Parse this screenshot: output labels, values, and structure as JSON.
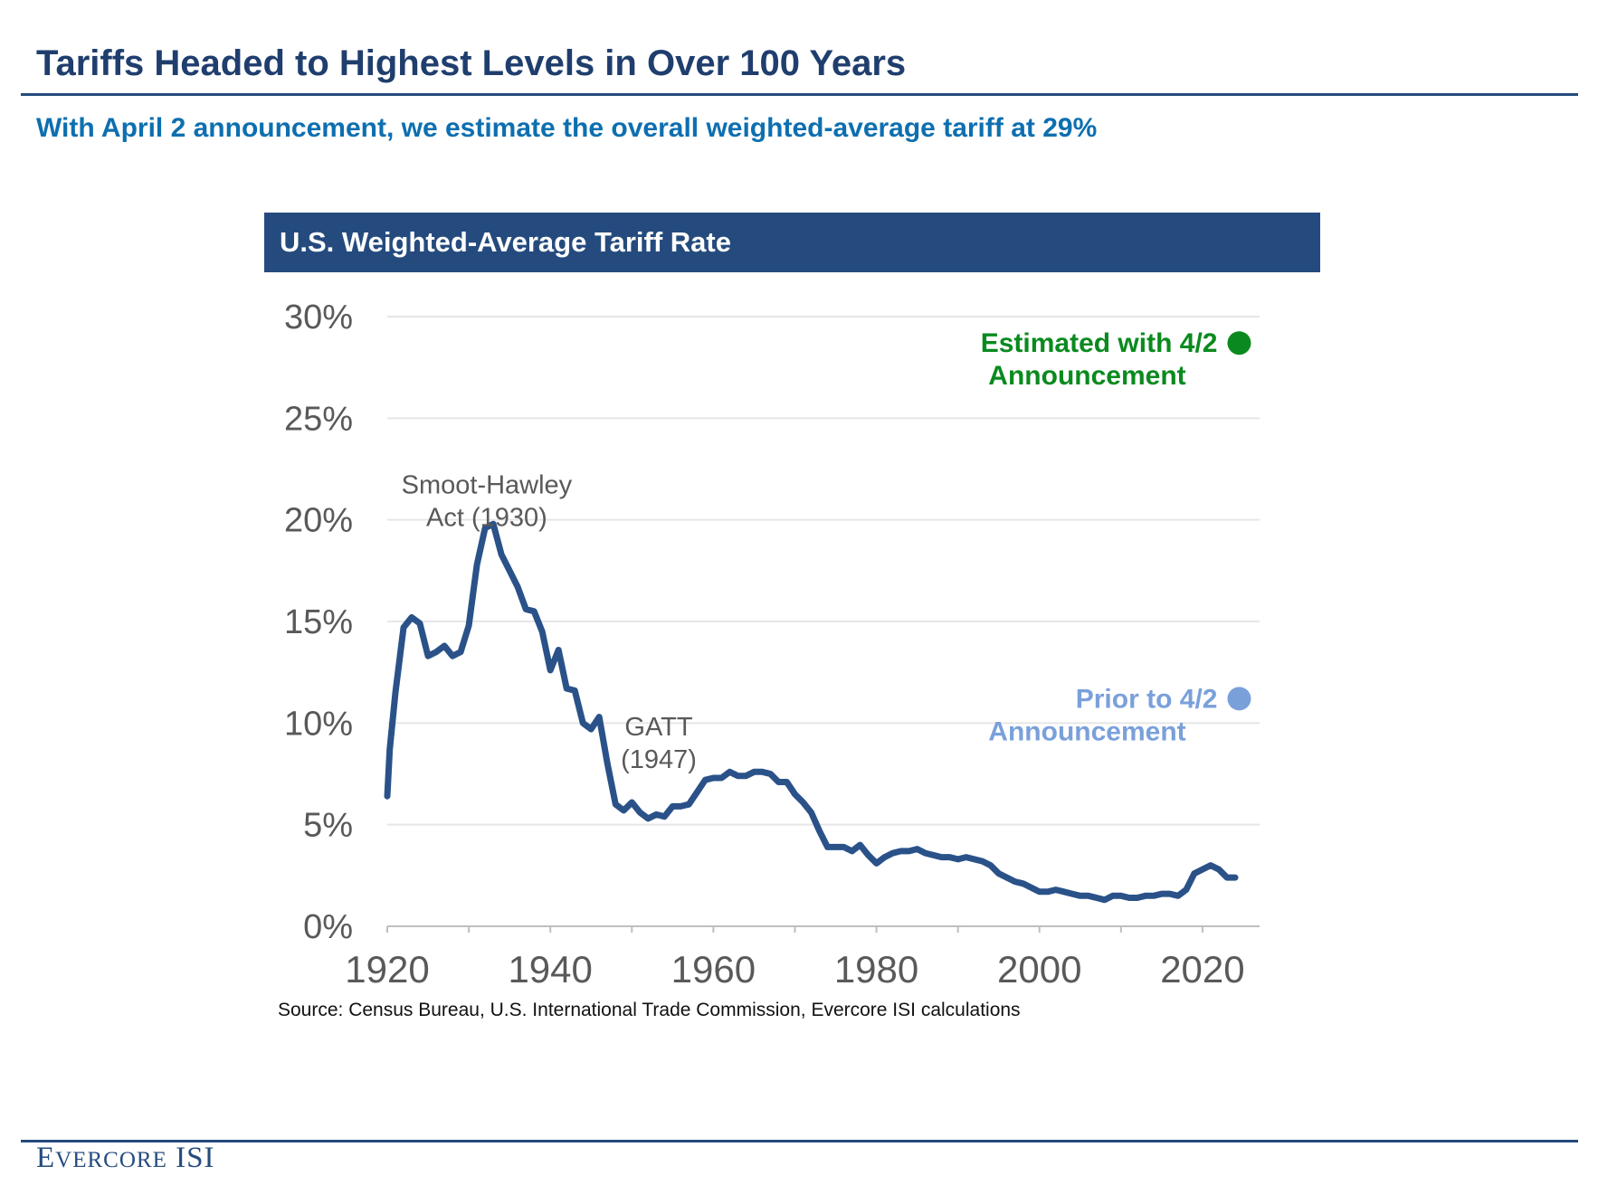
{
  "title": "Tariffs Headed to Highest Levels in Over 100 Years",
  "subtitle": "With April 2 announcement, we estimate the overall weighted-average tariff at 29%",
  "chart_header": "U.S. Weighted-Average Tariff Rate",
  "source": "Source: Census Bureau, U.S. International Trade Commission, Evercore ISI calculations",
  "logo": {
    "first_initial": "E",
    "rest": "VERCORE",
    "suffix": "ISI"
  },
  "colors": {
    "navy": "#254b7e",
    "line": "#2a5289",
    "estimated": "#0a8a1e",
    "prior": "#7aa0da",
    "subtitle": "#0d6fb0"
  },
  "chart_data": {
    "type": "line",
    "title": "U.S. Weighted-Average Tariff Rate",
    "xlabel": "",
    "ylabel": "",
    "xlim": [
      1920,
      2027
    ],
    "ylim": [
      0,
      30
    ],
    "xticks": [
      1920,
      1940,
      1960,
      1980,
      2000,
      2020
    ],
    "xtick_labels": [
      "1920",
      "1940",
      "1960",
      "1980",
      "2000",
      "2020"
    ],
    "yticks": [
      0,
      5,
      10,
      15,
      20,
      25,
      30
    ],
    "ytick_labels": [
      "0%",
      "5%",
      "10%",
      "15%",
      "20%",
      "25%",
      "30%"
    ],
    "grid": "horizontal",
    "series": [
      {
        "name": "U.S. Weighted-Average Tariff Rate",
        "x": [
          1920,
          1920.3,
          1921,
          1922,
          1923,
          1924,
          1925,
          1926,
          1927,
          1928,
          1929,
          1930,
          1931,
          1932,
          1933,
          1934,
          1935,
          1936,
          1937,
          1938,
          1939,
          1940,
          1941,
          1942,
          1943,
          1944,
          1945,
          1946,
          1947,
          1948,
          1949,
          1950,
          1951,
          1952,
          1953,
          1954,
          1955,
          1956,
          1957,
          1958,
          1959,
          1960,
          1961,
          1962,
          1963,
          1964,
          1965,
          1966,
          1967,
          1968,
          1969,
          1970,
          1971,
          1972,
          1973,
          1974,
          1975,
          1976,
          1977,
          1978,
          1979,
          1980,
          1981,
          1982,
          1983,
          1984,
          1985,
          1986,
          1987,
          1988,
          1989,
          1990,
          1991,
          1992,
          1993,
          1994,
          1995,
          1996,
          1997,
          1998,
          1999,
          2000,
          2001,
          2002,
          2003,
          2004,
          2005,
          2006,
          2007,
          2008,
          2009,
          2010,
          2011,
          2012,
          2013,
          2014,
          2015,
          2016,
          2017,
          2018,
          2019,
          2020,
          2021,
          2022,
          2023,
          2024
        ],
        "values": [
          6.4,
          8.7,
          11.5,
          14.7,
          15.2,
          14.9,
          13.3,
          13.5,
          13.8,
          13.3,
          13.5,
          14.8,
          17.8,
          19.6,
          19.8,
          18.3,
          17.5,
          16.7,
          15.6,
          15.5,
          14.5,
          12.6,
          13.6,
          11.7,
          11.6,
          10.0,
          9.7,
          10.3,
          8.0,
          6.0,
          5.7,
          6.1,
          5.6,
          5.3,
          5.5,
          5.4,
          5.9,
          5.9,
          6.0,
          6.6,
          7.2,
          7.3,
          7.3,
          7.6,
          7.4,
          7.4,
          7.6,
          7.6,
          7.5,
          7.1,
          7.1,
          6.5,
          6.1,
          5.6,
          4.7,
          3.9,
          3.9,
          3.9,
          3.7,
          4.0,
          3.5,
          3.1,
          3.4,
          3.6,
          3.7,
          3.7,
          3.8,
          3.6,
          3.5,
          3.4,
          3.4,
          3.3,
          3.4,
          3.3,
          3.2,
          3.0,
          2.6,
          2.4,
          2.2,
          2.1,
          1.9,
          1.7,
          1.7,
          1.8,
          1.7,
          1.6,
          1.5,
          1.5,
          1.4,
          1.3,
          1.5,
          1.5,
          1.4,
          1.4,
          1.5,
          1.5,
          1.6,
          1.6,
          1.5,
          1.8,
          2.6,
          2.8,
          3.0,
          2.8,
          2.4,
          2.4
        ]
      }
    ],
    "points": [
      {
        "name": "Estimated with 4/2 Announcement",
        "label_line1": "Estimated with 4/2",
        "label_line2": "Announcement",
        "x": 2024.5,
        "value": 28.7,
        "color": "#0a8a1e"
      },
      {
        "name": "Prior to 4/2 Announcement",
        "label_line1": "Prior to 4/2",
        "label_line2": "Announcement",
        "x": 2024.5,
        "value": 11.2,
        "color": "#7aa0da"
      }
    ],
    "annotations": [
      {
        "line1": "Smoot-Hawley",
        "line2": "Act (1930)",
        "x": 1932.2,
        "value": 21.3
      },
      {
        "line1": "GATT",
        "line2": "(1947)",
        "x": 1953.3,
        "value": 9.4
      }
    ]
  }
}
